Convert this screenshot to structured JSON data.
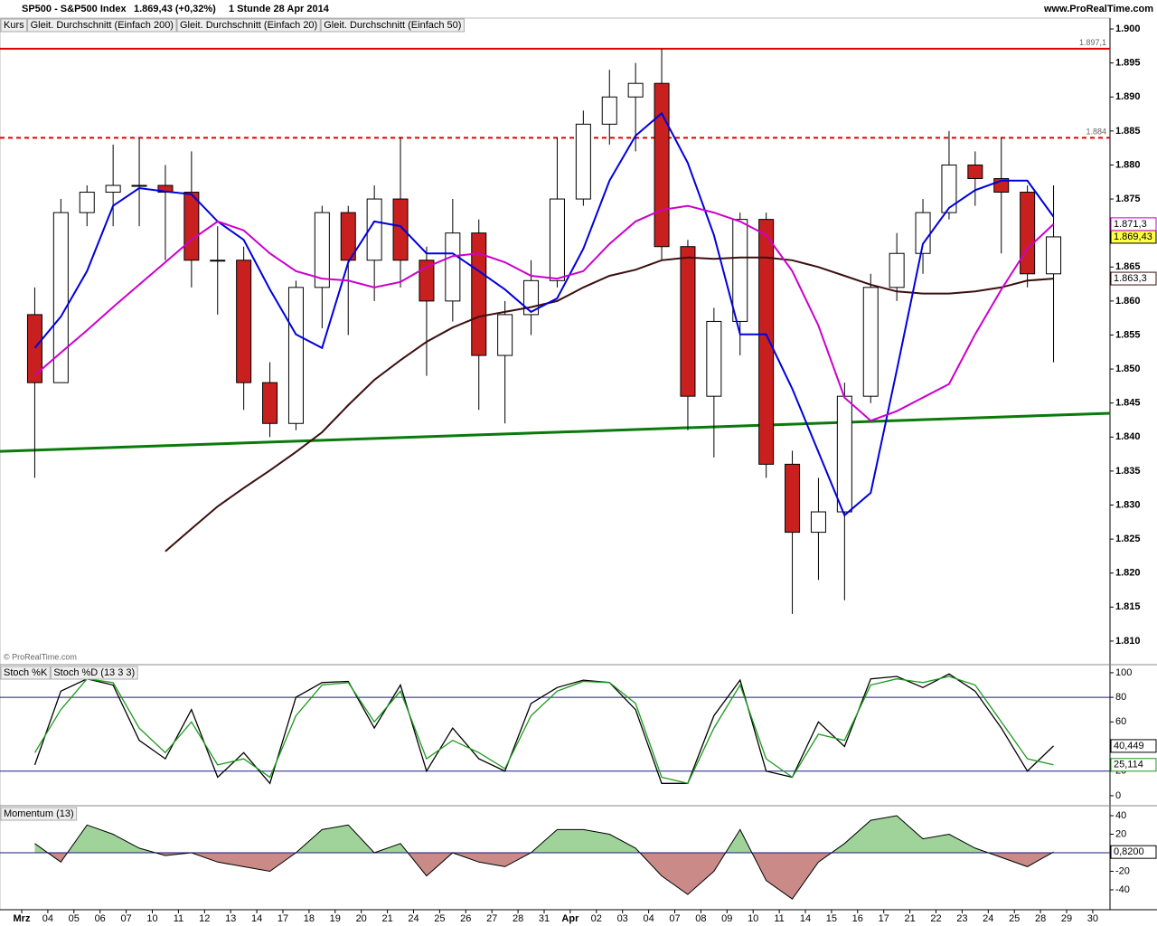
{
  "header": {
    "symbol": "SP500 - S&P500 Index",
    "quote": "1.869,43 (+0,32%)",
    "period": "1 Stunde  28 Apr 2014",
    "site": "www.ProRealTime.com"
  },
  "chart_data": [
    {
      "type": "candlestick",
      "name": "Kurs",
      "source": "© ProRealTime.com",
      "categories": [
        "Mrz",
        "04",
        "05",
        "06",
        "07",
        "10",
        "11",
        "12",
        "13",
        "14",
        "17",
        "18",
        "19",
        "20",
        "21",
        "24",
        "25",
        "26",
        "27",
        "28",
        "31",
        "Apr",
        "02",
        "03",
        "04",
        "07",
        "08",
        "09",
        "10",
        "11",
        "14",
        "15",
        "16",
        "17",
        "21",
        "22",
        "23",
        "24",
        "25",
        "28",
        "29",
        "30"
      ],
      "open": [
        1858,
        1848,
        1873,
        1876,
        1877,
        1877,
        1876,
        1866,
        1866,
        1848,
        1842,
        1862,
        1873,
        1866,
        1875,
        1866,
        1860,
        1870,
        1852,
        1858,
        1863,
        1875,
        1886,
        1890,
        1892,
        1868,
        1846,
        1857,
        1872,
        1836,
        1826,
        1829,
        1846,
        1862,
        1867,
        1873,
        1880,
        1878,
        1876,
        1864,
        null,
        null
      ],
      "high": [
        1862,
        1875,
        1877,
        1883,
        1884,
        1880,
        1882,
        1871,
        1868,
        1851,
        1863,
        1874,
        1874,
        1877,
        1884,
        1868,
        1875,
        1872,
        1860,
        1866,
        1884,
        1888,
        1894,
        1895,
        1897.1,
        1869,
        1859,
        1873,
        1873,
        1838,
        1834,
        1848,
        1864,
        1870,
        1875,
        1885,
        1882,
        1884,
        1877,
        1877,
        null,
        null
      ],
      "low": [
        1834,
        1848,
        1871,
        1871,
        1871,
        1866,
        1862,
        1858,
        1844,
        1840,
        1841,
        1856,
        1855,
        1860,
        1862,
        1849,
        1857,
        1844,
        1842,
        1855,
        1862,
        1874,
        1883,
        1882,
        1866,
        1841,
        1837,
        1852,
        1834,
        1814,
        1819,
        1816,
        1845,
        1860,
        1864,
        1872,
        1874,
        1867,
        1862,
        1851,
        null,
        null
      ],
      "close": [
        1848,
        1873,
        1876,
        1877,
        1877,
        1876,
        1866,
        1866,
        1848,
        1842,
        1862,
        1873,
        1866,
        1875,
        1866,
        1860,
        1870,
        1852,
        1858,
        1863,
        1875,
        1886,
        1890,
        1892,
        1868,
        1846,
        1857,
        1872,
        1836,
        1826,
        1829,
        1846,
        1862,
        1867,
        1873,
        1880,
        1878,
        1876,
        1864,
        1869.43,
        null,
        null
      ],
      "value_labels": [
        null,
        null,
        null,
        null,
        null,
        null,
        null,
        null,
        null,
        null,
        null,
        null,
        null,
        null,
        null,
        null,
        null,
        null,
        null,
        null,
        null,
        null,
        null,
        null,
        null,
        null,
        null,
        null,
        null,
        null,
        null,
        null,
        null,
        null,
        null,
        null,
        null,
        null,
        null,
        "1.869,43",
        null,
        null
      ],
      "up_color": "#ffffff",
      "down_color": "#c8201e",
      "series": [
        {
          "name": "Gleit. Durchschnitt (Einfach 200)",
          "color": "#3b0f0f",
          "values": [
            null,
            null,
            null,
            null,
            null,
            1823.2,
            1826.5,
            1829.8,
            1832.5,
            1835.1,
            1837.8,
            1840.7,
            1844.7,
            1848.4,
            1851.3,
            1854.0,
            1856.1,
            1857.7,
            1858.4,
            1859.1,
            1860.0,
            1862.0,
            1863.7,
            1864.6,
            1866.0,
            1866.4,
            1866.2,
            1866.4,
            1866.4,
            1866.0,
            1865.0,
            1863.7,
            1862.4,
            1861.4,
            1861.1,
            1861.1,
            1861.4,
            1862.0,
            1863.0,
            1863.3,
            null,
            null
          ],
          "value_labels": [
            null,
            null,
            null,
            null,
            null,
            null,
            null,
            null,
            null,
            null,
            null,
            null,
            null,
            null,
            null,
            null,
            null,
            null,
            null,
            null,
            null,
            null,
            null,
            null,
            null,
            null,
            null,
            null,
            null,
            null,
            null,
            null,
            null,
            null,
            null,
            null,
            null,
            null,
            null,
            "1.863,3",
            null,
            null
          ]
        },
        {
          "name": "Gleit. Durchschnitt (Einfach 20)",
          "color": "#0000dd",
          "values": [
            1853.1,
            1857.7,
            1864.4,
            1874.0,
            1876.6,
            1876.1,
            1875.7,
            1871.7,
            1869.0,
            1861.7,
            1855.1,
            1853.1,
            1865.7,
            1871.7,
            1871.0,
            1867.0,
            1867.0,
            1864.4,
            1861.7,
            1858.4,
            1860.4,
            1867.7,
            1877.7,
            1884.3,
            1887.6,
            1880.3,
            1869.7,
            1855.1,
            1855.1,
            1847.1,
            1837.8,
            1828.5,
            1831.8,
            1849.8,
            1868.4,
            1873.7,
            1876.3,
            1877.7,
            1877.7,
            1872.4,
            null,
            null
          ]
        },
        {
          "name": "Gleit. Durchschnitt (Einfach 50)",
          "color": "#cc00cc",
          "values": [
            1849.1,
            1852.4,
            1855.7,
            1859.1,
            1862.4,
            1865.7,
            1869.0,
            1871.7,
            1870.4,
            1867.0,
            1864.4,
            1863.3,
            1863.0,
            1862.0,
            1862.8,
            1865.0,
            1866.6,
            1867.0,
            1865.7,
            1863.7,
            1863.3,
            1864.4,
            1868.4,
            1871.7,
            1873.4,
            1874.0,
            1873.0,
            1871.7,
            1869.7,
            1864.4,
            1856.4,
            1845.8,
            1842.4,
            1843.8,
            1845.8,
            1847.8,
            1855.1,
            1861.7,
            1867.7,
            1871.3,
            null,
            null
          ],
          "value_labels": [
            null,
            null,
            null,
            null,
            null,
            null,
            null,
            null,
            null,
            null,
            null,
            null,
            null,
            null,
            null,
            null,
            null,
            null,
            null,
            null,
            null,
            null,
            null,
            null,
            null,
            null,
            null,
            null,
            null,
            null,
            null,
            null,
            null,
            null,
            null,
            null,
            null,
            null,
            null,
            "1.871,3",
            null,
            null
          ]
        }
      ],
      "levels": [
        {
          "value": 1897.1,
          "label": "1.897,1",
          "color": "#e00000",
          "style": "solid"
        },
        {
          "value": 1884,
          "label": "1.884",
          "color": "#e00000",
          "style": "dashed"
        }
      ],
      "trendline": {
        "x": [
          -1.33,
          41.17
        ],
        "values": [
          1837.9,
          1843.5
        ],
        "color": "#0a7a0a"
      },
      "ylim": [
        1806.8,
        1901.6
      ],
      "yticks": [
        {
          "value": 1810,
          "label": "1.810"
        },
        {
          "value": 1815,
          "label": "1.815"
        },
        {
          "value": 1820,
          "label": "1.820"
        },
        {
          "value": 1825,
          "label": "1.825"
        },
        {
          "value": 1830,
          "label": "1.830"
        },
        {
          "value": 1835,
          "label": "1.835"
        },
        {
          "value": 1840,
          "label": "1.840"
        },
        {
          "value": 1845,
          "label": "1.845"
        },
        {
          "value": 1850,
          "label": "1.850"
        },
        {
          "value": 1855,
          "label": "1.855"
        },
        {
          "value": 1860,
          "label": "1.860"
        },
        {
          "value": 1865,
          "label": "1.865"
        },
        {
          "value": 1870,
          "label": "1.870"
        },
        {
          "value": 1875,
          "label": "1.875"
        },
        {
          "value": 1880,
          "label": "1.880"
        },
        {
          "value": 1885,
          "label": "1.885"
        },
        {
          "value": 1890,
          "label": "1.890"
        },
        {
          "value": 1895,
          "label": "1.895"
        },
        {
          "value": 1900,
          "label": "1.900"
        }
      ]
    },
    {
      "type": "line",
      "series": [
        {
          "name": "Stoch %K",
          "color": "#000000",
          "values": [
            25,
            85,
            95,
            90,
            45,
            30,
            70,
            15,
            35,
            10,
            80,
            92,
            93,
            55,
            90,
            20,
            55,
            30,
            20,
            75,
            88,
            94,
            92,
            70,
            10,
            10,
            65,
            94,
            20,
            15,
            60,
            40,
            95,
            97,
            88,
            99,
            85,
            55,
            20,
            40.449,
            null,
            null
          ],
          "value_labels": [
            null,
            null,
            null,
            null,
            null,
            null,
            null,
            null,
            null,
            null,
            null,
            null,
            null,
            null,
            null,
            null,
            null,
            null,
            null,
            null,
            null,
            null,
            null,
            null,
            null,
            null,
            null,
            null,
            null,
            null,
            null,
            null,
            null,
            null,
            null,
            null,
            null,
            null,
            null,
            "40,449",
            null,
            null
          ]
        },
        {
          "name": "Stoch %D (13 3 3)",
          "color": "#1a9a1a",
          "values": [
            35,
            70,
            95,
            92,
            55,
            35,
            60,
            25,
            30,
            15,
            65,
            90,
            92,
            60,
            85,
            30,
            45,
            35,
            22,
            65,
            85,
            93,
            92,
            75,
            15,
            10,
            55,
            90,
            30,
            15,
            50,
            45,
            90,
            95,
            92,
            97,
            90,
            60,
            30,
            25.114,
            null,
            null
          ],
          "value_labels": [
            null,
            null,
            null,
            null,
            null,
            null,
            null,
            null,
            null,
            null,
            null,
            null,
            null,
            null,
            null,
            null,
            null,
            null,
            null,
            null,
            null,
            null,
            null,
            null,
            null,
            null,
            null,
            null,
            null,
            null,
            null,
            null,
            null,
            null,
            null,
            null,
            null,
            null,
            null,
            "25,114",
            null,
            null
          ]
        }
      ],
      "levels": [
        80,
        20
      ],
      "level_color": "#1a1a8a",
      "ylim": [
        -7.4,
        105.1
      ],
      "yticks": [
        0,
        20,
        40,
        60,
        80,
        100
      ]
    },
    {
      "type": "area",
      "series": [
        {
          "name": "Momentum (13)",
          "color": "#000000",
          "values": [
            10,
            -10,
            30,
            20,
            5,
            -3,
            0,
            -10,
            -15,
            -20,
            0,
            25,
            30,
            0,
            10,
            -25,
            0,
            -10,
            -15,
            0,
            25,
            25,
            20,
            5,
            -25,
            -45,
            -20,
            25,
            -30,
            -50,
            -10,
            10,
            35,
            40,
            15,
            20,
            5,
            -5,
            -15,
            0.82,
            null,
            null
          ],
          "value_labels": [
            null,
            null,
            null,
            null,
            null,
            null,
            null,
            null,
            null,
            null,
            null,
            null,
            null,
            null,
            null,
            null,
            null,
            null,
            null,
            null,
            null,
            null,
            null,
            null,
            null,
            null,
            null,
            null,
            null,
            null,
            null,
            null,
            null,
            null,
            null,
            null,
            null,
            null,
            null,
            "0,8200",
            null,
            null
          ]
        }
      ],
      "pos_color": "#9fd39a",
      "neg_color": "#c98a88",
      "level_color": "#1a1a8a",
      "ylim": [
        -60.5,
        48.8
      ],
      "yticks": [
        -40,
        -20,
        20,
        40
      ]
    }
  ]
}
